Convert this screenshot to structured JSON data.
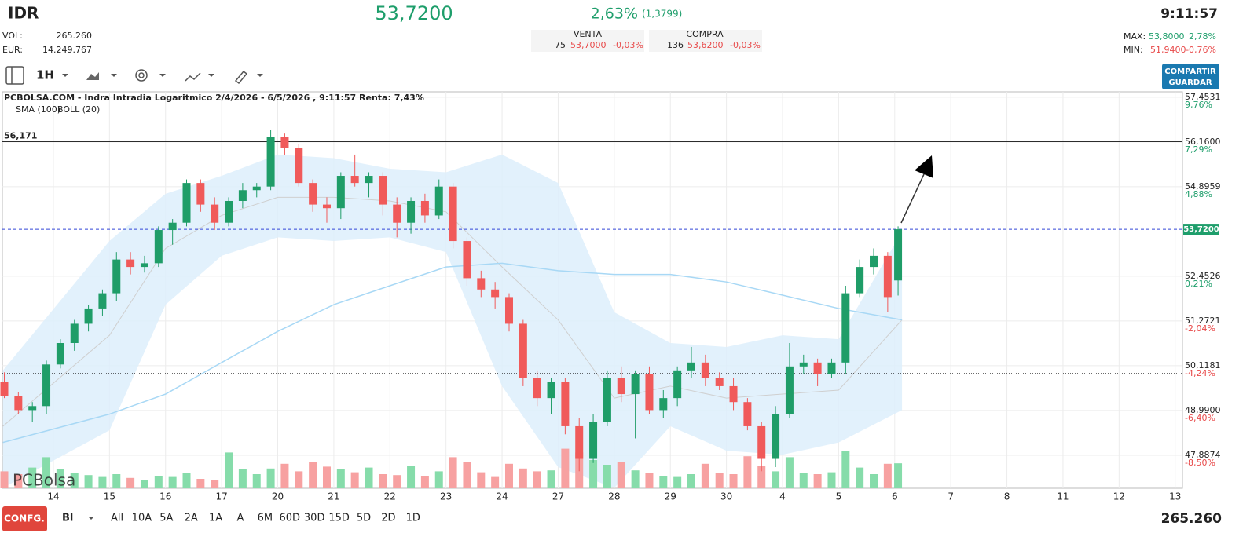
{
  "header": {
    "ticker": "IDR",
    "price": "53,7200",
    "change": "2,63%",
    "change_abs": "(1,3799)",
    "time": "9:11:57",
    "vol_label": "VOL:",
    "vol": "265.260",
    "eur_label": "EUR:",
    "eur": "14.249.767",
    "venta_label": "VENTA",
    "venta_qty": "75",
    "venta_price": "53,7000",
    "venta_pct": "-0,03%",
    "compra_label": "COMPRA",
    "compra_qty": "136",
    "compra_price": "53,6200",
    "compra_pct": "-0,03%",
    "max_label": "MAX:",
    "max": "53,8000",
    "max_pct": "2,78%",
    "min_label": "MIN:",
    "min": "51,9400",
    "min_pct": "-0,76%"
  },
  "toolbar": {
    "interval": "1H",
    "share_button": [
      "COMPARTIR",
      "GUARDAR"
    ]
  },
  "footer": {
    "config": "CONFG.",
    "mode": "Bl",
    "ranges": [
      "All",
      "10A",
      "5A",
      "2A",
      "1A",
      "A",
      "6M",
      "60D",
      "30D",
      "15D",
      "5D",
      "2D",
      "1D"
    ],
    "volume": "265.260"
  },
  "chart_data": {
    "type": "candlestick",
    "title": "PCBOLSA.COM - Indra Intradia Logaritmico 2/4/2026 - 6/5/2026 , 9:11:57 Renta: 7,43%",
    "watermark": "PCBolsa",
    "log_scale": true,
    "grid": true,
    "up_color": "#1f9d68",
    "down_color": "#f05a5a",
    "volume_up_color": "#86dcaa",
    "volume_down_color": "#f7a1a1",
    "xlim": [
      -0.91,
      20.13
    ],
    "xticks": [
      {
        "value": 0,
        "label": "14"
      },
      {
        "value": 1,
        "label": "15"
      },
      {
        "value": 2,
        "label": "16"
      },
      {
        "value": 3,
        "label": "17"
      },
      {
        "value": 4,
        "label": "20"
      },
      {
        "value": 5,
        "label": "21"
      },
      {
        "value": 6,
        "label": "22"
      },
      {
        "value": 7,
        "label": "23"
      },
      {
        "value": 8,
        "label": "24"
      },
      {
        "value": 9,
        "label": "27"
      },
      {
        "value": 10,
        "label": "28"
      },
      {
        "value": 11,
        "label": "29"
      },
      {
        "value": 12,
        "label": "30"
      },
      {
        "value": 13,
        "label": "4"
      },
      {
        "value": 14,
        "label": "5"
      },
      {
        "value": 15,
        "label": "6"
      },
      {
        "value": 16,
        "label": "7"
      },
      {
        "value": 17,
        "label": "8"
      },
      {
        "value": 18,
        "label": "11"
      },
      {
        "value": 19,
        "label": "12"
      },
      {
        "value": 20,
        "label": "13"
      }
    ],
    "ylim": [
      47.09,
      57.61
    ],
    "yticks": [
      {
        "value": 57.4531,
        "label": "57,4531"
      },
      {
        "value": 56.16,
        "label": "56,1600"
      },
      {
        "value": 54.8959,
        "label": "54,8959"
      },
      {
        "value": 52.4526,
        "label": "52,4526"
      },
      {
        "value": 51.2721,
        "label": "51,2721"
      },
      {
        "value": 50.1181,
        "label": "50,1181"
      },
      {
        "value": 48.99,
        "label": "48,9900"
      },
      {
        "value": 47.8874,
        "label": "47,8874"
      }
    ],
    "ytick_changes": [
      "9,76%",
      "7,29%",
      "4,88%",
      "0,21%",
      "-2,04%",
      "-4,24%",
      "-6,40%",
      "-8,50%"
    ],
    "volume_ylim": [
      0,
      500000
    ],
    "x": [
      -0.875,
      -0.625,
      -0.375,
      -0.125,
      0.125,
      0.375,
      0.625,
      0.875,
      1.125,
      1.375,
      1.625,
      1.875,
      2.125,
      2.375,
      2.625,
      2.875,
      3.125,
      3.375,
      3.625,
      3.875,
      4.125,
      4.375,
      4.625,
      4.875,
      5.125,
      5.375,
      5.625,
      5.875,
      6.125,
      6.375,
      6.625,
      6.875,
      7.125,
      7.375,
      7.625,
      7.875,
      8.125,
      8.375,
      8.625,
      8.875,
      9.125,
      9.375,
      9.625,
      9.875,
      10.125,
      10.375,
      10.625,
      10.875,
      11.125,
      11.375,
      11.625,
      11.875,
      12.125,
      12.375,
      12.625,
      12.875,
      13.125,
      13.375,
      13.625,
      13.875,
      14.125,
      14.375,
      14.625,
      14.875,
      15.06
    ],
    "open": [
      49.7,
      49.35,
      49.0,
      49.1,
      50.15,
      50.7,
      51.2,
      51.6,
      52.0,
      52.9,
      52.7,
      52.8,
      53.7,
      53.9,
      55.0,
      54.4,
      53.9,
      54.5,
      54.8,
      54.9,
      56.3,
      56.0,
      55.0,
      54.4,
      54.3,
      55.2,
      55.0,
      55.2,
      54.4,
      53.9,
      54.5,
      54.1,
      54.9,
      53.4,
      52.4,
      52.1,
      51.9,
      51.2,
      49.8,
      49.3,
      49.7,
      48.6,
      47.8,
      48.7,
      49.8,
      49.4,
      49.9,
      49.0,
      49.3,
      50.0,
      50.2,
      49.8,
      49.6,
      49.2,
      48.6,
      47.8,
      48.9,
      50.1,
      50.2,
      49.9,
      50.2,
      52.0,
      52.7,
      53.0,
      52.34
    ],
    "high": [
      49.95,
      49.45,
      49.2,
      50.25,
      50.8,
      51.3,
      51.7,
      52.1,
      53.1,
      53.1,
      53.0,
      53.8,
      54.0,
      55.1,
      55.1,
      54.6,
      54.6,
      55.0,
      55.0,
      56.5,
      56.4,
      56.1,
      55.1,
      54.6,
      55.3,
      55.8,
      55.3,
      55.3,
      54.6,
      54.6,
      54.7,
      55.1,
      55.0,
      53.5,
      52.6,
      52.3,
      52.0,
      51.3,
      50.0,
      49.8,
      49.8,
      48.8,
      48.9,
      50.0,
      50.1,
      50.0,
      50.1,
      49.5,
      50.1,
      50.6,
      50.4,
      49.95,
      49.8,
      49.3,
      48.7,
      49.1,
      50.7,
      50.4,
      50.3,
      50.3,
      52.2,
      52.9,
      53.2,
      53.1,
      53.8
    ],
    "low": [
      49.3,
      48.9,
      48.7,
      48.9,
      50.05,
      50.5,
      51.0,
      51.4,
      51.8,
      52.5,
      52.55,
      52.7,
      53.3,
      53.8,
      54.2,
      53.7,
      53.8,
      54.3,
      54.6,
      54.8,
      55.8,
      54.9,
      54.2,
      53.9,
      54.0,
      54.9,
      54.6,
      54.1,
      53.5,
      53.6,
      53.9,
      54.0,
      53.2,
      52.2,
      51.9,
      51.6,
      51.0,
      49.6,
      49.1,
      48.9,
      48.4,
      47.5,
      47.7,
      48.6,
      49.2,
      48.3,
      48.9,
      48.8,
      49.1,
      49.8,
      49.6,
      49.5,
      49.0,
      48.5,
      47.5,
      47.6,
      48.8,
      49.9,
      49.6,
      49.8,
      49.9,
      51.9,
      52.5,
      51.5,
      51.94
    ],
    "close": [
      49.35,
      49.0,
      49.1,
      50.15,
      50.7,
      51.2,
      51.6,
      52.0,
      52.9,
      52.7,
      52.8,
      53.7,
      53.9,
      55.0,
      54.4,
      53.9,
      54.5,
      54.8,
      54.9,
      56.3,
      56.0,
      55.0,
      54.4,
      54.3,
      55.2,
      55.0,
      55.2,
      54.4,
      53.9,
      54.5,
      54.1,
      54.9,
      53.4,
      52.4,
      52.1,
      51.9,
      51.2,
      49.8,
      49.3,
      49.7,
      48.6,
      47.8,
      48.7,
      49.8,
      49.4,
      49.9,
      49.0,
      49.3,
      50.0,
      50.2,
      49.8,
      49.6,
      49.2,
      48.6,
      47.8,
      48.9,
      50.1,
      50.2,
      49.9,
      50.2,
      52.0,
      52.7,
      53.0,
      51.9,
      53.72
    ],
    "volume": [
      180000,
      150000,
      220000,
      330000,
      200000,
      160000,
      140000,
      120000,
      150000,
      110000,
      90000,
      130000,
      120000,
      160000,
      100000,
      90000,
      380000,
      200000,
      150000,
      210000,
      260000,
      180000,
      280000,
      230000,
      200000,
      170000,
      220000,
      150000,
      140000,
      240000,
      130000,
      180000,
      330000,
      280000,
      170000,
      120000,
      260000,
      210000,
      180000,
      190000,
      420000,
      380000,
      300000,
      250000,
      280000,
      190000,
      160000,
      130000,
      120000,
      150000,
      260000,
      160000,
      150000,
      340000,
      240000,
      180000,
      330000,
      160000,
      150000,
      170000,
      400000,
      220000,
      150000,
      260000,
      265260
    ],
    "sma": {
      "name": "SMA (100)",
      "color": "#a8d8f5",
      "x": [
        -0.9,
        1,
        2,
        3,
        4,
        5,
        6,
        7,
        8,
        9,
        10,
        11,
        12,
        13,
        14,
        15.13
      ],
      "values": [
        48.2,
        48.9,
        49.4,
        50.2,
        51.0,
        51.7,
        52.2,
        52.7,
        52.8,
        52.6,
        52.5,
        52.5,
        52.3,
        51.95,
        51.6,
        51.3
      ]
    },
    "boll": {
      "name": "BOLL (20)",
      "color": "#cfcfcf",
      "fill": "#ddeefb",
      "x": [
        -0.9,
        1,
        2,
        3,
        4,
        5,
        6,
        7,
        8,
        9,
        10,
        11,
        12,
        13,
        14,
        15.13
      ],
      "upper": [
        50.0,
        53.4,
        54.7,
        55.2,
        55.8,
        55.7,
        55.4,
        55.3,
        55.8,
        55.0,
        51.5,
        50.7,
        50.6,
        50.9,
        50.8,
        53.65
      ],
      "middle": [
        48.6,
        50.9,
        53.2,
        54.1,
        54.6,
        54.6,
        54.5,
        54.2,
        52.7,
        51.3,
        49.3,
        49.6,
        49.3,
        49.4,
        49.5,
        51.3
      ],
      "lower": [
        47.1,
        48.5,
        51.7,
        53.0,
        53.5,
        53.4,
        53.5,
        53.1,
        49.6,
        47.6,
        47.1,
        48.6,
        48.0,
        47.9,
        48.2,
        49.0
      ]
    },
    "reference_lines": [
      {
        "value": 56.171,
        "label": "56,171",
        "style": "solid",
        "color": "#111111",
        "label_side": "left"
      },
      {
        "value": 53.72,
        "label": "53,7200",
        "style": "dashed",
        "color": "#3346d8",
        "label_side": "right",
        "label_color": "#1e9e6b"
      },
      {
        "value": 49.92,
        "style": "dotted",
        "color": "#111111"
      }
    ]
  }
}
